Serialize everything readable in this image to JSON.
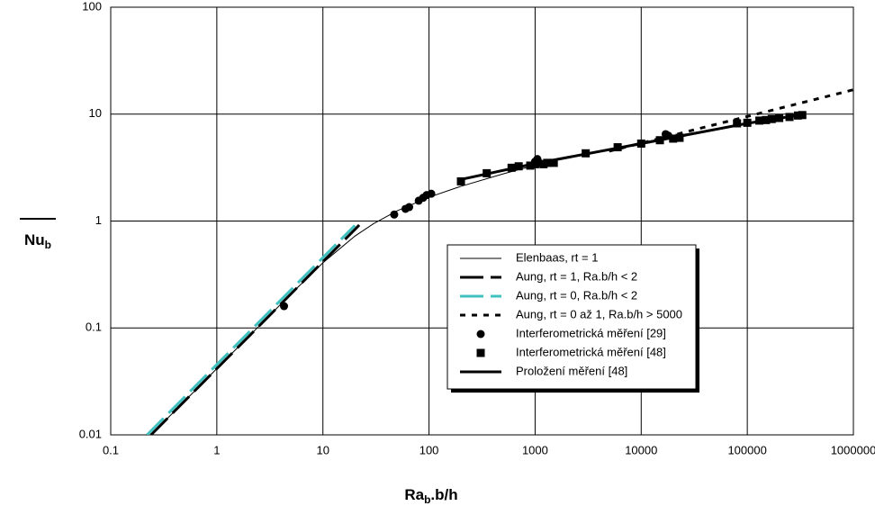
{
  "chart_data": {
    "type": "line",
    "xlabel": {
      "text": "Ra",
      "sub": "b",
      "rest": ".b/h"
    },
    "ylabel": {
      "text": "Nu",
      "sub": "b"
    },
    "xscale": "log",
    "yscale": "log",
    "grid": true,
    "legend": "lower right",
    "xlim": [
      0.1,
      1000000
    ],
    "ylim": [
      0.01,
      100
    ],
    "xticks": [
      0.1,
      1,
      10,
      100,
      1000,
      10000,
      100000,
      1000000
    ],
    "yticks": [
      0.01,
      0.1,
      1,
      10,
      100
    ],
    "series": [
      {
        "name": "Elenbaas, rt = 1",
        "color": "#000000",
        "style": "thin",
        "x": [
          0.24,
          0.5,
          1,
          2,
          5,
          10,
          20,
          30,
          50,
          100,
          200,
          500,
          1000,
          2000,
          5000,
          10000,
          20000,
          50000,
          100000,
          200000,
          350000
        ],
        "values": [
          0.01,
          0.0208,
          0.0417,
          0.0833,
          0.208,
          0.407,
          0.722,
          0.945,
          1.245,
          1.669,
          2.113,
          2.76,
          3.33,
          3.98,
          4.7,
          5.4,
          6.2,
          7.3,
          8.3,
          9.3,
          10
        ]
      },
      {
        "name": "Aung, rt = 1, Ra.b/h < 2",
        "color": "#000000",
        "style": "dash",
        "x": [
          0.24,
          22
        ],
        "values": [
          0.01,
          0.917
        ]
      },
      {
        "name": "Aung, rt = 0, Ra.b/h < 2",
        "color": "#40c0c0",
        "style": "dash",
        "x": [
          0.22,
          20
        ],
        "values": [
          0.01,
          0.909
        ]
      },
      {
        "name": "Aung, rt = 0 až 1, Ra.b/h > 5000",
        "color": "#000000",
        "style": "dot",
        "x": [
          5000,
          1000000
        ],
        "values": [
          4.5,
          16.9
        ]
      },
      {
        "name": "Interferometrická měření [29]",
        "color": "#000000",
        "style": "circle",
        "x": [
          4.3,
          47,
          60,
          65,
          80,
          88,
          95,
          105,
          1000,
          1050,
          1100,
          17000,
          18000
        ],
        "values": [
          0.16,
          1.15,
          1.3,
          1.35,
          1.55,
          1.65,
          1.75,
          1.8,
          3.6,
          3.8,
          3.5,
          6.5,
          6.3
        ]
      },
      {
        "name": "Interferometrická měření [48]",
        "color": "#000000",
        "style": "square",
        "x": [
          200,
          350,
          600,
          700,
          900,
          1000,
          1200,
          1300,
          1500,
          3000,
          6000,
          10000,
          15000,
          20000,
          23000,
          80000,
          100000,
          130000,
          150000,
          170000,
          200000,
          250000,
          300000,
          330000
        ],
        "values": [
          2.35,
          2.8,
          3.15,
          3.25,
          3.3,
          3.4,
          3.4,
          3.5,
          3.5,
          4.3,
          4.9,
          5.3,
          5.7,
          5.9,
          6.0,
          8.2,
          8.3,
          8.7,
          8.8,
          9.0,
          9.2,
          9.4,
          9.7,
          9.8
        ]
      },
      {
        "name": "Proložení měření [48]",
        "color": "#000000",
        "style": "thick",
        "x": [
          200,
          1000,
          10000,
          100000,
          350000
        ],
        "values": [
          2.45,
          3.45,
          5.3,
          8.2,
          10
        ]
      }
    ]
  }
}
